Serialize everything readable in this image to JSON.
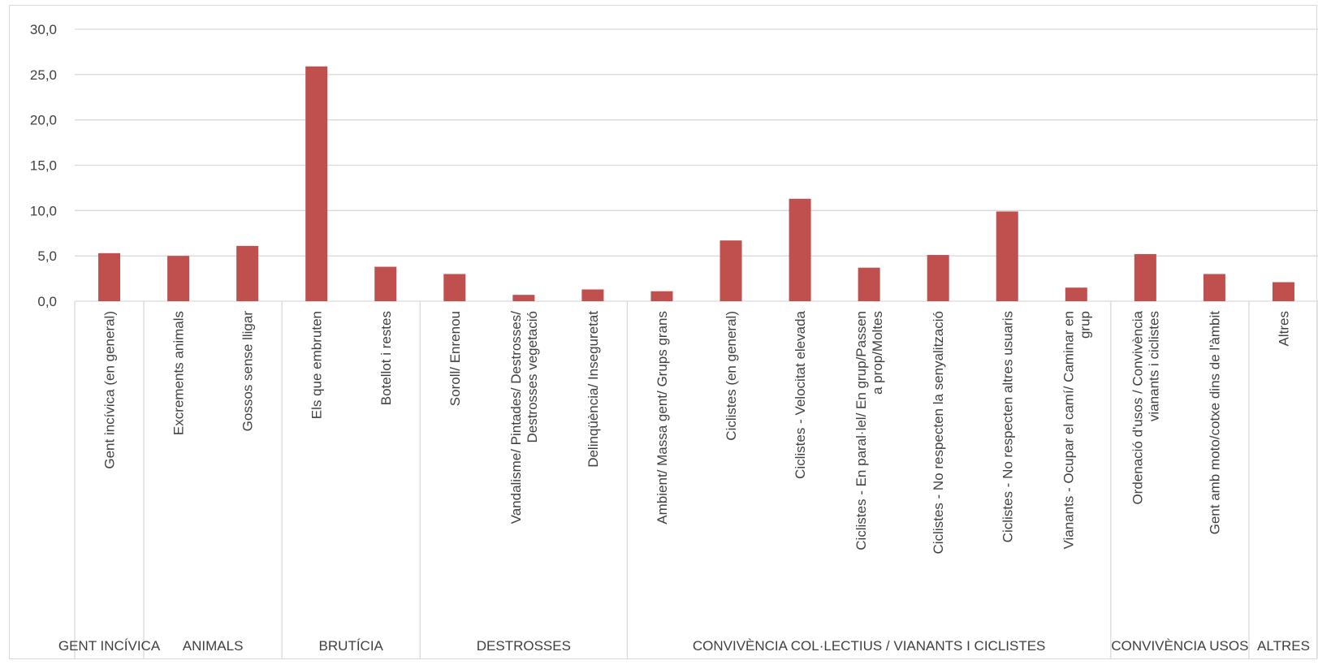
{
  "chart_data": {
    "type": "bar",
    "title": "",
    "xlabel": "",
    "ylabel": "",
    "ylim": [
      0,
      30
    ],
    "yticks": [
      0,
      5,
      10,
      15,
      20,
      25,
      30
    ],
    "ytick_labels": [
      "0,0",
      "5,0",
      "10,0",
      "15,0",
      "20,0",
      "25,0",
      "30,0"
    ],
    "grid": "horizontal",
    "bar_color": "#c0504d",
    "categories": [
      "Gent incívica (en general)",
      "Excrements animals",
      "Gossos sense lligar",
      "Els que embruten",
      "Botellot i restes",
      "Soroll/ Enrenou",
      "Vandalisme/ Pintades/ Destrosses/ Destrosses vegetació",
      "Delinqüència/ Inseguretat",
      "Ambient/ Massa gent/ Grups grans",
      "Ciclistes (en general)",
      "Ciclistes - Velocitat elevada",
      "Ciclistes - En paral·lel/ En grup/Passen a prop/Moltes",
      "Ciclistes - No respecten la senyalització",
      "Ciclistes - No respecten altres usuaris",
      "Vianants - Ocupar el camí/ Caminar en grup",
      "Ordenació d'usos / Convivència vianants i ciclistes",
      "Gent amb moto/cotxe dins de l'àmbit",
      "Altres"
    ],
    "values": [
      5.3,
      5.0,
      6.1,
      25.9,
      3.8,
      3.0,
      0.7,
      1.3,
      1.1,
      6.7,
      11.3,
      3.7,
      5.1,
      9.9,
      1.5,
      5.2,
      3.0,
      2.1
    ],
    "groups": [
      {
        "label": "GENT INCÍVICA",
        "start": 0,
        "count": 1
      },
      {
        "label": "ANIMALS",
        "start": 1,
        "count": 2
      },
      {
        "label": "BRUTÍCIA",
        "start": 3,
        "count": 2
      },
      {
        "label": "DESTROSSES",
        "start": 5,
        "count": 3
      },
      {
        "label": "CONVIVÈNCIA COL·LECTIUS / VIANANTS I CICLISTES",
        "start": 8,
        "count": 7
      },
      {
        "label": "CONVIVÈNCIA USOS",
        "start": 15,
        "count": 2
      },
      {
        "label": "ALTRES",
        "start": 17,
        "count": 1
      }
    ]
  }
}
